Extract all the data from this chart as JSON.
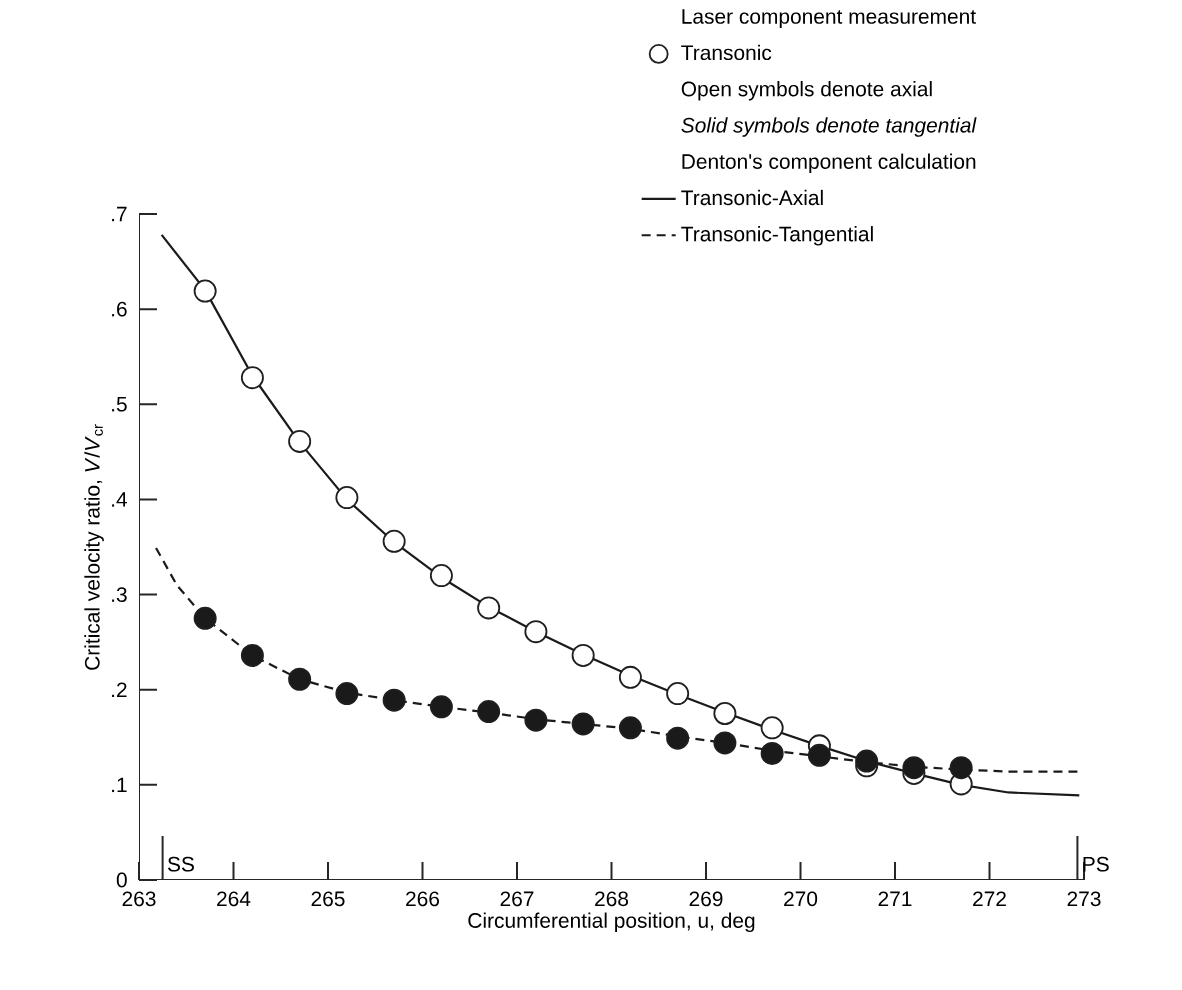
{
  "chart_data": {
    "type": "scatter",
    "xlabel": "Circumferential position, u, deg",
    "ylabel": "Critical velocity ratio, *V*/*V*$_{cr}$",
    "xlim": [
      263,
      273
    ],
    "xticks": [
      263,
      264,
      265,
      266,
      267,
      268,
      269,
      270,
      271,
      272,
      273
    ],
    "ylim": [
      0,
      0.7
    ],
    "yticks": [
      0,
      {
        "value": 0.1,
        "label": ".1"
      },
      {
        "value": 0.2,
        "label": ".2"
      },
      {
        "value": 0.3,
        "label": ".3"
      },
      {
        "value": 0.4,
        "label": ".4"
      },
      {
        "value": 0.5,
        "label": ".5"
      },
      {
        "value": 0.6,
        "label": ".6"
      },
      {
        "value": 0.7,
        "label": ".7"
      }
    ],
    "legend": "top right",
    "series": [
      {
        "name": "Transonic",
        "marker": "circle",
        "color": "#ffffff",
        "x": [
          263.7,
          264.2,
          264.7,
          265.2,
          265.7,
          266.2,
          266.7,
          267.2,
          267.7,
          268.2,
          268.7,
          269.2,
          269.7,
          270.2,
          270.7,
          271.2,
          271.7
        ],
        "values": [
          0.619,
          0.528,
          0.461,
          0.402,
          0.356,
          0.32,
          0.286,
          0.261,
          0.236,
          0.213,
          0.196,
          0.175,
          0.16,
          0.141,
          0.12,
          0.112,
          0.101
        ]
      },
      {
        "marker": "circle",
        "color": "#1a1a1a",
        "x": [
          263.7,
          264.2,
          264.7,
          265.2,
          265.7,
          266.2,
          266.7,
          267.2,
          267.7,
          268.2,
          268.7,
          269.2,
          269.7,
          270.2,
          270.7,
          271.2,
          271.7
        ],
        "values": [
          0.275,
          0.236,
          0.211,
          0.196,
          0.189,
          0.182,
          0.177,
          0.168,
          0.164,
          0.16,
          0.149,
          0.144,
          0.133,
          0.131,
          0.125,
          0.118,
          0.118
        ]
      },
      {
        "name": "Transonic-Axial",
        "type": "line",
        "marker": "none",
        "line_style": "solid",
        "color": "#1a1a1a",
        "x": [
          263.24,
          263.7,
          264.2,
          264.7,
          265.2,
          265.7,
          266.2,
          266.7,
          267.2,
          267.7,
          268.2,
          268.7,
          269.2,
          269.7,
          270.2,
          270.7,
          271.2,
          271.7,
          272.2,
          272.95
        ],
        "values": [
          0.678,
          0.62,
          0.53,
          0.46,
          0.4,
          0.355,
          0.318,
          0.287,
          0.261,
          0.237,
          0.215,
          0.195,
          0.176,
          0.158,
          0.141,
          0.125,
          0.112,
          0.1,
          0.092,
          0.089
        ]
      },
      {
        "name": "Transonic-Tangential",
        "type": "line",
        "marker": "none",
        "line_style": "dashed",
        "color": "#1a1a1a",
        "x": [
          263.18,
          263.4,
          263.7,
          264.2,
          264.7,
          265.2,
          265.7,
          266.2,
          266.7,
          267.2,
          267.7,
          268.2,
          268.7,
          269.2,
          269.7,
          270.2,
          270.7,
          271.2,
          271.7,
          272.2,
          272.93
        ],
        "values": [
          0.349,
          0.31,
          0.275,
          0.236,
          0.211,
          0.197,
          0.189,
          0.182,
          0.176,
          0.169,
          0.164,
          0.159,
          0.151,
          0.144,
          0.136,
          0.13,
          0.124,
          0.119,
          0.116,
          0.114,
          0.114
        ]
      }
    ],
    "annotations": [
      "Laser component measurement",
      "Open symbols denote axial",
      "*Solid symbols denote tangential*",
      "Denton's component calculation",
      "SS",
      "PS"
    ]
  }
}
